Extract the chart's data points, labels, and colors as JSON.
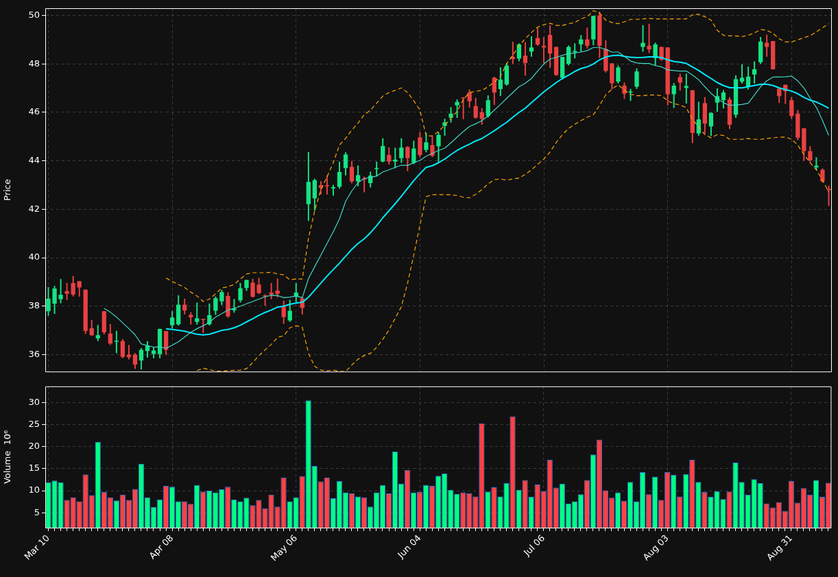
{
  "chart_data": [
    {
      "type": "candlestick",
      "ylabel": "Price",
      "grid": true,
      "tick_labels": "y",
      "ylim": [
        35.3,
        50.3
      ],
      "yticks": [
        36,
        38,
        40,
        42,
        44,
        46,
        48,
        50
      ],
      "ohlc": [
        [
          37.79,
          38.78,
          37.62,
          38.31
        ],
        [
          38.1,
          38.83,
          37.69,
          38.73
        ],
        [
          38.29,
          39.11,
          38.13,
          38.47
        ],
        [
          38.62,
          38.95,
          38.27,
          38.51
        ],
        [
          38.95,
          39.24,
          38.41,
          38.48
        ],
        [
          39.03,
          39.03,
          38.4,
          38.77
        ],
        [
          38.68,
          38.68,
          36.86,
          36.98
        ],
        [
          37.09,
          37.42,
          36.78,
          36.8
        ],
        [
          36.67,
          37.21,
          36.57,
          36.8
        ],
        [
          37.79,
          37.79,
          36.84,
          36.92
        ],
        [
          36.87,
          37.25,
          36.41,
          36.46
        ],
        [
          36.53,
          36.97,
          36.07,
          36.55
        ],
        [
          36.56,
          36.63,
          35.86,
          35.91
        ],
        [
          36.0,
          36.39,
          35.81,
          35.89
        ],
        [
          36.0,
          36.05,
          35.42,
          35.59
        ],
        [
          35.76,
          36.26,
          35.4,
          36.2
        ],
        [
          36.15,
          36.55,
          35.89,
          36.36
        ],
        [
          36.03,
          36.29,
          35.86,
          36.17
        ],
        [
          36.02,
          37.06,
          35.86,
          37.06
        ],
        [
          36.97,
          36.97,
          36.0,
          36.2
        ],
        [
          37.21,
          37.79,
          37.09,
          37.53
        ],
        [
          37.25,
          38.44,
          37.21,
          38.06
        ],
        [
          38.06,
          38.3,
          37.67,
          37.82
        ],
        [
          37.64,
          37.74,
          37.25,
          37.54
        ],
        [
          37.35,
          38.14,
          37.25,
          37.5
        ],
        [
          37.47,
          37.47,
          36.9,
          37.43
        ],
        [
          37.25,
          38.1,
          37.21,
          37.63
        ],
        [
          37.81,
          38.39,
          37.65,
          38.33
        ],
        [
          38.2,
          38.66,
          38.06,
          38.58
        ],
        [
          38.42,
          38.56,
          37.53,
          37.58
        ],
        [
          37.83,
          38.29,
          37.74,
          37.9
        ],
        [
          38.24,
          38.95,
          38.16,
          38.74
        ],
        [
          38.75,
          39.08,
          38.64,
          39.08
        ],
        [
          38.97,
          39.12,
          38.37,
          38.39
        ],
        [
          38.89,
          39.16,
          38.51,
          38.54
        ],
        [
          38.44,
          38.48,
          38.03,
          38.4
        ],
        [
          38.56,
          38.95,
          38.3,
          38.48
        ],
        [
          38.64,
          39.14,
          38.37,
          38.51
        ],
        [
          37.98,
          38.22,
          37.28,
          37.55
        ],
        [
          37.41,
          38.25,
          37.36,
          37.81
        ],
        [
          38.4,
          38.95,
          38.17,
          38.56
        ],
        [
          38.32,
          38.37,
          37.67,
          37.93
        ],
        [
          42.21,
          44.36,
          41.53,
          43.13
        ],
        [
          42.45,
          43.25,
          41.95,
          43.2
        ],
        [
          42.99,
          43.15,
          42.62,
          42.89
        ],
        [
          42.99,
          43.39,
          42.62,
          42.95
        ],
        [
          42.86,
          43.0,
          42.57,
          42.91
        ],
        [
          42.93,
          43.95,
          42.86,
          43.54
        ],
        [
          43.7,
          44.34,
          43.41,
          44.26
        ],
        [
          43.75,
          43.99,
          43.08,
          43.15
        ],
        [
          43.15,
          43.8,
          42.96,
          43.41
        ],
        [
          43.27,
          43.34,
          42.71,
          43.23
        ],
        [
          43.08,
          43.54,
          42.91,
          43.39
        ],
        [
          43.66,
          43.95,
          43.37,
          43.7
        ],
        [
          43.97,
          44.92,
          43.95,
          44.61
        ],
        [
          44.24,
          44.55,
          43.85,
          43.97
        ],
        [
          43.97,
          44.53,
          43.7,
          44.05
        ],
        [
          44.11,
          44.92,
          43.92,
          44.55
        ],
        [
          44.57,
          44.6,
          43.58,
          44.11
        ],
        [
          43.92,
          44.82,
          43.87,
          44.51
        ],
        [
          44.97,
          45.18,
          44.16,
          44.24
        ],
        [
          44.45,
          45.15,
          44.36,
          44.76
        ],
        [
          44.65,
          45.01,
          44.16,
          44.21
        ],
        [
          44.6,
          45.18,
          43.95,
          45.07
        ],
        [
          45.44,
          45.73,
          45.05,
          45.59
        ],
        [
          45.78,
          46.21,
          45.59,
          45.95
        ],
        [
          46.29,
          46.53,
          45.78,
          46.43
        ],
        [
          46.59,
          46.62,
          45.73,
          46.57
        ],
        [
          46.82,
          46.94,
          46.21,
          46.46
        ],
        [
          46.26,
          46.59,
          45.75,
          45.78
        ],
        [
          46.0,
          46.17,
          45.5,
          45.73
        ],
        [
          45.85,
          46.69,
          45.8,
          46.5
        ],
        [
          47.43,
          47.46,
          46.31,
          46.82
        ],
        [
          46.96,
          47.85,
          46.69,
          47.35
        ],
        [
          47.15,
          48.02,
          47.11,
          47.93
        ],
        [
          48.29,
          48.91,
          48.02,
          48.2
        ],
        [
          48.22,
          48.84,
          48.12,
          48.81
        ],
        [
          48.34,
          48.89,
          47.52,
          48.04
        ],
        [
          48.51,
          49.13,
          48.31,
          48.68
        ],
        [
          49.07,
          49.47,
          48.75,
          48.8
        ],
        [
          48.75,
          49.1,
          48.04,
          48.68
        ],
        [
          49.2,
          49.59,
          47.85,
          48.43
        ],
        [
          48.7,
          48.7,
          47.52,
          47.54
        ],
        [
          47.43,
          48.29,
          47.37,
          48.29
        ],
        [
          48.0,
          48.75,
          47.95,
          48.7
        ],
        [
          48.49,
          48.84,
          48.24,
          48.54
        ],
        [
          48.81,
          49.18,
          48.51,
          49.01
        ],
        [
          49.01,
          49.49,
          48.65,
          48.75
        ],
        [
          49.01,
          49.98,
          48.78,
          49.98
        ],
        [
          50.0,
          50.15,
          48.26,
          48.75
        ],
        [
          48.62,
          48.97,
          47.66,
          47.71
        ],
        [
          48.02,
          48.02,
          46.96,
          47.2
        ],
        [
          47.27,
          47.93,
          47.2,
          47.85
        ],
        [
          47.11,
          47.23,
          46.56,
          46.77
        ],
        [
          46.82,
          46.96,
          46.48,
          46.84
        ],
        [
          47.06,
          47.81,
          46.98,
          47.69
        ],
        [
          48.7,
          49.59,
          48.51,
          48.87
        ],
        [
          48.75,
          49.65,
          48.46,
          48.6
        ],
        [
          48.24,
          48.87,
          47.93,
          48.81
        ],
        [
          48.7,
          48.7,
          48.14,
          48.17
        ],
        [
          48.68,
          48.68,
          46.3,
          46.75
        ],
        [
          46.75,
          47.2,
          46.19,
          47.1
        ],
        [
          47.46,
          47.59,
          46.91,
          47.23
        ],
        [
          47.01,
          47.59,
          46.38,
          47.09
        ],
        [
          46.91,
          46.91,
          44.74,
          45.15
        ],
        [
          45.13,
          46.43,
          45.05,
          45.71
        ],
        [
          46.38,
          46.62,
          45.13,
          45.53
        ],
        [
          45.42,
          45.98,
          45.03,
          45.98
        ],
        [
          46.4,
          46.98,
          46.04,
          46.67
        ],
        [
          46.5,
          46.91,
          46.17,
          46.82
        ],
        [
          46.53,
          46.62,
          45.32,
          45.49
        ],
        [
          45.9,
          47.52,
          45.78,
          47.37
        ],
        [
          47.27,
          47.97,
          47.2,
          47.43
        ],
        [
          47.06,
          47.88,
          46.96,
          47.48
        ],
        [
          47.56,
          48.1,
          47.2,
          47.78
        ],
        [
          48.07,
          49.1,
          48.02,
          48.92
        ],
        [
          48.87,
          49.2,
          48.31,
          48.7
        ],
        [
          48.94,
          48.94,
          47.78,
          47.78
        ],
        [
          46.98,
          46.98,
          46.4,
          46.67
        ],
        [
          47.14,
          47.14,
          46.36,
          46.87
        ],
        [
          46.5,
          46.62,
          45.75,
          45.85
        ],
        [
          45.95,
          46.09,
          44.86,
          44.95
        ],
        [
          45.34,
          45.34,
          44.02,
          44.4
        ],
        [
          44.4,
          44.6,
          43.95,
          44.02
        ],
        [
          43.73,
          44.14,
          43.63,
          43.8
        ],
        [
          43.63,
          43.68,
          43.12,
          43.15
        ],
        [
          42.84,
          42.96,
          42.15,
          42.79
        ]
      ],
      "colors": [
        "#16e383",
        "#16e383",
        "#16e383",
        "#e84142",
        "#e84142",
        "#e84142",
        "#e84142",
        "#e84142",
        "#16e383",
        "#e84142",
        "#e84142",
        "#16e383",
        "#e84142",
        "#e84142",
        "#e84142",
        "#16e383",
        "#16e383",
        "#16e383",
        "#16e383",
        "#e84142",
        "#16e383",
        "#16e383",
        "#e84142",
        "#e84142",
        "#16e383",
        "#e84142",
        "#16e383",
        "#16e383",
        "#16e383",
        "#e84142",
        "#16e383",
        "#16e383",
        "#16e383",
        "#e84142",
        "#e84142",
        "#e84142",
        "#e84142",
        "#e84142",
        "#e84142",
        "#16e383",
        "#16e383",
        "#e84142",
        "#16e383",
        "#16e383",
        "#e84142",
        "#e84142",
        "#16e383",
        "#16e383",
        "#16e383",
        "#e84142",
        "#16e383",
        "#e84142",
        "#16e383",
        "#16e383",
        "#16e383",
        "#e84142",
        "#16e383",
        "#16e383",
        "#e84142",
        "#16e383",
        "#e84142",
        "#16e383",
        "#e84142",
        "#16e383",
        "#16e383",
        "#16e383",
        "#16e383",
        "#e84142",
        "#e84142",
        "#e84142",
        "#e84142",
        "#16e383",
        "#e84142",
        "#16e383",
        "#16e383",
        "#e84142",
        "#16e383",
        "#e84142",
        "#16e383",
        "#e84142",
        "#e84142",
        "#e84142",
        "#e84142",
        "#16e383",
        "#16e383",
        "#16e383",
        "#16e383",
        "#e84142",
        "#16e383",
        "#e84142",
        "#e84142",
        "#e84142",
        "#16e383",
        "#e84142",
        "#16e383",
        "#16e383",
        "#16e383",
        "#e84142",
        "#16e383",
        "#e84142",
        "#e84142",
        "#16e383",
        "#e84142",
        "#16e383",
        "#e84142",
        "#16e383",
        "#e84142",
        "#16e383",
        "#16e383",
        "#16e383",
        "#e84142",
        "#16e383",
        "#16e383",
        "#16e383",
        "#16e383",
        "#16e383",
        "#e84142",
        "#e84142",
        "#e84142",
        "#e84142",
        "#e84142",
        "#e84142",
        "#e84142",
        "#e84142",
        "#16e383",
        "#e84142",
        "#e84142"
      ],
      "series": [
        {
          "type": "line",
          "color": "#40d9c9",
          "line_style": "solid",
          "values": [
            null,
            null,
            null,
            null,
            null,
            null,
            null,
            null,
            null,
            37.91,
            37.75,
            37.55,
            37.31,
            37.07,
            36.82,
            36.44,
            36.37,
            36.31,
            36.32,
            36.26,
            36.39,
            36.53,
            36.73,
            36.92,
            37.07,
            37.19,
            37.33,
            37.55,
            37.69,
            37.84,
            37.91,
            38.0,
            38.1,
            38.19,
            38.29,
            38.39,
            38.45,
            38.44,
            38.35,
            38.37,
            38.42,
            38.35,
            39.14,
            39.63,
            40.11,
            40.59,
            41.07,
            41.6,
            42.33,
            42.76,
            43.1,
            43.27,
            43.31,
            43.37,
            43.54,
            43.63,
            43.73,
            43.82,
            43.81,
            43.92,
            44.02,
            44.19,
            44.31,
            44.43,
            44.52,
            44.74,
            44.98,
            45.21,
            45.42,
            45.53,
            45.66,
            45.85,
            46.09,
            46.33,
            46.58,
            46.82,
            47.06,
            47.2,
            47.4,
            47.71,
            48.0,
            48.2,
            48.27,
            48.36,
            48.43,
            48.45,
            48.49,
            48.55,
            48.68,
            48.68,
            48.6,
            48.49,
            48.49,
            48.31,
            48.12,
            48.04,
            48.02,
            48.02,
            47.93,
            47.88,
            47.75,
            47.73,
            47.7,
            47.71,
            47.54,
            47.35,
            47.06,
            46.79,
            46.56,
            46.4,
            46.29,
            46.31,
            46.33,
            46.38,
            46.72,
            47.06,
            47.3,
            47.46,
            47.46,
            47.47,
            47.5,
            47.3,
            47.01,
            46.58,
            46.21,
            45.66,
            45.05
          ]
        },
        {
          "type": "line",
          "color": "#00eaff",
          "line_style": "solid",
          "values": [
            null,
            null,
            null,
            null,
            null,
            null,
            null,
            null,
            null,
            null,
            null,
            null,
            null,
            null,
            null,
            null,
            null,
            null,
            null,
            37.07,
            37.04,
            37.0,
            36.97,
            36.9,
            36.84,
            36.81,
            36.84,
            36.92,
            37.0,
            37.04,
            37.11,
            37.21,
            37.35,
            37.48,
            37.62,
            37.74,
            37.84,
            37.96,
            38.0,
            38.08,
            38.13,
            38.16,
            38.37,
            38.66,
            38.95,
            39.24,
            39.51,
            39.77,
            40.06,
            40.35,
            40.59,
            40.78,
            41.03,
            41.32,
            41.65,
            41.94,
            42.23,
            42.54,
            42.86,
            43.18,
            43.47,
            43.73,
            43.8,
            43.92,
            44.07,
            44.26,
            44.43,
            44.57,
            44.69,
            44.82,
            44.92,
            45.08,
            45.24,
            45.42,
            45.59,
            45.8,
            46.0,
            46.17,
            46.4,
            46.62,
            46.85,
            47.04,
            47.23,
            47.4,
            47.54,
            47.69,
            47.81,
            47.88,
            48.0,
            48.17,
            48.29,
            48.34,
            48.36,
            48.31,
            48.28,
            48.26,
            48.27,
            48.29,
            48.29,
            48.26,
            48.17,
            48.1,
            48.07,
            48.02,
            47.88,
            47.73,
            47.56,
            47.4,
            47.23,
            47.11,
            47.02,
            47.02,
            47.01,
            47.06,
            47.11,
            47.16,
            47.16,
            47.11,
            47.01,
            46.94,
            46.88,
            46.77,
            46.62,
            46.5,
            46.43,
            46.31,
            46.17
          ]
        },
        {
          "type": "line",
          "color": "#ffa500",
          "line_style": "dashed",
          "values": [
            null,
            null,
            null,
            null,
            null,
            null,
            null,
            null,
            null,
            null,
            null,
            null,
            null,
            null,
            null,
            null,
            null,
            null,
            null,
            39.16,
            39.02,
            38.9,
            38.77,
            38.58,
            38.42,
            38.19,
            38.29,
            38.51,
            38.75,
            38.8,
            38.9,
            39.12,
            39.33,
            39.38,
            39.38,
            39.38,
            39.4,
            39.33,
            39.29,
            39.09,
            39.12,
            39.12,
            40.8,
            41.94,
            42.81,
            43.34,
            43.92,
            44.65,
            44.93,
            45.27,
            45.56,
            45.9,
            46.09,
            46.38,
            46.67,
            46.82,
            46.91,
            47.01,
            46.82,
            46.48,
            46.09,
            45.03,
            45.03,
            45.21,
            45.47,
            45.76,
            46.04,
            46.53,
            46.82,
            46.87,
            46.91,
            47.06,
            47.25,
            47.49,
            48.02,
            48.36,
            48.75,
            49.04,
            49.3,
            49.52,
            49.62,
            49.68,
            49.59,
            49.59,
            49.66,
            49.71,
            49.86,
            49.95,
            50.2,
            50.1,
            49.81,
            49.71,
            49.66,
            49.74,
            49.84,
            49.84,
            49.86,
            49.88,
            49.86,
            49.86,
            49.86,
            49.86,
            49.86,
            49.86,
            50.03,
            50.05,
            49.95,
            49.81,
            49.39,
            49.18,
            49.16,
            49.16,
            49.13,
            49.18,
            49.28,
            49.42,
            49.39,
            49.26,
            49.04,
            48.91,
            48.91,
            48.99,
            49.09,
            49.16,
            49.33,
            49.49,
            49.66
          ]
        },
        {
          "type": "line",
          "color": "#ffa500",
          "line_style": "dashed",
          "values": [
            null,
            null,
            null,
            null,
            null,
            null,
            null,
            null,
            null,
            null,
            null,
            null,
            null,
            null,
            null,
            null,
            null,
            null,
            null,
            null,
            null,
            null,
            null,
            null,
            35.34,
            35.44,
            35.38,
            35.32,
            35.32,
            35.33,
            35.35,
            35.36,
            35.42,
            35.67,
            35.96,
            36.2,
            36.42,
            36.71,
            36.78,
            37.11,
            37.19,
            37.13,
            36.05,
            35.52,
            35.36,
            35.33,
            35.36,
            35.31,
            35.3,
            35.57,
            35.81,
            35.96,
            36.05,
            36.3,
            36.63,
            37.02,
            37.5,
            37.98,
            38.95,
            40.11,
            41.36,
            42.52,
            42.6,
            42.6,
            42.6,
            42.6,
            42.57,
            42.5,
            42.47,
            42.62,
            42.81,
            43.05,
            43.22,
            43.25,
            43.2,
            43.25,
            43.29,
            43.44,
            43.63,
            43.85,
            44.07,
            44.36,
            44.76,
            45.08,
            45.34,
            45.51,
            45.66,
            45.8,
            45.9,
            46.29,
            46.72,
            46.96,
            47.14,
            46.91,
            46.75,
            46.69,
            46.69,
            46.72,
            46.72,
            46.69,
            46.48,
            46.36,
            46.31,
            46.19,
            45.71,
            45.4,
            45.08,
            44.95,
            45.08,
            45.05,
            44.89,
            44.89,
            44.89,
            44.92,
            44.89,
            44.89,
            44.92,
            44.95,
            44.98,
            44.98,
            44.89,
            44.65,
            44.26,
            43.92,
            43.63,
            43.2,
            42.71
          ]
        }
      ]
    },
    {
      "type": "bar",
      "ylabel": "Volume  10⁶",
      "grid": true,
      "categories": [
        "Mar 10",
        null,
        null,
        null,
        null,
        null,
        null,
        null,
        null,
        null,
        null,
        null,
        null,
        null,
        null,
        null,
        null,
        null,
        null,
        null,
        "Apr 08",
        null,
        null,
        null,
        null,
        null,
        null,
        null,
        null,
        null,
        null,
        null,
        null,
        null,
        null,
        null,
        null,
        null,
        null,
        null,
        "May 06",
        null,
        null,
        null,
        null,
        null,
        null,
        null,
        null,
        null,
        null,
        null,
        null,
        null,
        null,
        null,
        null,
        null,
        null,
        null,
        "Jun 04",
        null,
        null,
        null,
        null,
        null,
        null,
        null,
        null,
        null,
        null,
        null,
        null,
        null,
        null,
        null,
        null,
        null,
        null,
        null,
        "Jul 06",
        null,
        null,
        null,
        null,
        null,
        null,
        null,
        null,
        null,
        null,
        null,
        null,
        null,
        null,
        null,
        null,
        null,
        null,
        null,
        "Aug 03",
        null,
        null,
        null,
        null,
        null,
        null,
        null,
        null,
        null,
        null,
        null,
        null,
        null,
        null,
        null,
        null,
        null,
        null,
        null,
        "Aug 31",
        null,
        null,
        null,
        null,
        null,
        null
      ],
      "ylim": [
        1.6,
        33.7
      ],
      "yticks": [
        5,
        10,
        15,
        20,
        25,
        30
      ],
      "values": [
        11.9,
        12.3,
        11.9,
        7.9,
        8.5,
        7.6,
        13.7,
        9.0,
        21.1,
        9.7,
        8.5,
        7.8,
        9.1,
        7.9,
        10.4,
        16.1,
        8.5,
        6.3,
        8.0,
        11.1,
        10.9,
        7.6,
        7.6,
        7.0,
        11.3,
        9.8,
        10.0,
        9.6,
        10.3,
        10.9,
        8.0,
        7.6,
        8.4,
        6.7,
        7.9,
        6.0,
        9.1,
        6.4,
        13.0,
        7.6,
        8.5,
        13.3,
        30.5,
        15.6,
        12.1,
        13.0,
        8.3,
        12.2,
        9.6,
        9.4,
        8.7,
        8.5,
        6.4,
        9.6,
        11.3,
        9.4,
        18.9,
        11.6,
        14.7,
        9.6,
        9.7,
        11.3,
        11.1,
        13.4,
        13.9,
        10.2,
        9.3,
        9.6,
        9.4,
        8.7,
        25.3,
        9.8,
        10.8,
        8.7,
        11.7,
        26.9,
        10.2,
        12.4,
        8.6,
        11.4,
        9.9,
        17.0,
        10.7,
        11.6,
        7.1,
        7.6,
        9.2,
        12.4,
        18.2,
        21.6,
        10.1,
        8.4,
        9.6,
        7.7,
        12.0,
        7.6,
        14.2,
        9.2,
        13.2,
        7.9,
        14.2,
        13.6,
        8.7,
        13.8,
        17.0,
        12.0,
        9.7,
        8.6,
        9.9,
        8.1,
        9.8,
        16.4,
        12.0,
        9.1,
        12.6,
        11.7,
        7.1,
        6.2,
        7.4,
        5.4,
        12.2,
        7.3,
        10.6,
        9.1,
        12.4,
        8.6,
        11.8
      ],
      "colors": [
        "#00ff84",
        "#00ff84",
        "#00ff84",
        "#ff4242",
        "#ff4242",
        "#ff4242",
        "#ff4242",
        "#ff4242",
        "#00ff84",
        "#ff4242",
        "#ff4242",
        "#00ff84",
        "#ff4242",
        "#ff4242",
        "#ff4242",
        "#00ff84",
        "#00ff84",
        "#00ff84",
        "#00ff84",
        "#ff4242",
        "#00ff84",
        "#00ff84",
        "#ff4242",
        "#ff4242",
        "#00ff84",
        "#ff4242",
        "#00ff84",
        "#00ff84",
        "#00ff84",
        "#ff4242",
        "#00ff84",
        "#00ff84",
        "#00ff84",
        "#ff4242",
        "#ff4242",
        "#ff4242",
        "#ff4242",
        "#ff4242",
        "#ff4242",
        "#00ff84",
        "#00ff84",
        "#ff4242",
        "#00ff84",
        "#00ff84",
        "#ff4242",
        "#ff4242",
        "#00ff84",
        "#00ff84",
        "#00ff84",
        "#ff4242",
        "#00ff84",
        "#ff4242",
        "#00ff84",
        "#00ff84",
        "#00ff84",
        "#ff4242",
        "#00ff84",
        "#00ff84",
        "#ff4242",
        "#00ff84",
        "#ff4242",
        "#00ff84",
        "#ff4242",
        "#00ff84",
        "#00ff84",
        "#00ff84",
        "#00ff84",
        "#ff4242",
        "#ff4242",
        "#ff4242",
        "#ff4242",
        "#00ff84",
        "#ff4242",
        "#00ff84",
        "#00ff84",
        "#ff4242",
        "#00ff84",
        "#ff4242",
        "#00ff84",
        "#ff4242",
        "#ff4242",
        "#ff4242",
        "#ff4242",
        "#00ff84",
        "#00ff84",
        "#00ff84",
        "#00ff84",
        "#ff4242",
        "#00ff84",
        "#ff4242",
        "#ff4242",
        "#ff4242",
        "#00ff84",
        "#ff4242",
        "#00ff84",
        "#00ff84",
        "#00ff84",
        "#ff4242",
        "#00ff84",
        "#ff4242",
        "#ff4242",
        "#00ff84",
        "#ff4242",
        "#00ff84",
        "#ff4242",
        "#00ff84",
        "#ff4242",
        "#00ff84",
        "#00ff84",
        "#00ff84",
        "#ff4242",
        "#00ff84",
        "#00ff84",
        "#00ff84",
        "#00ff84",
        "#00ff84",
        "#ff4242",
        "#ff4242",
        "#ff4242",
        "#ff4242",
        "#ff4242",
        "#ff4242",
        "#ff4242",
        "#ff4242",
        "#00ff84",
        "#ff4242",
        "#ff4242"
      ]
    }
  ]
}
